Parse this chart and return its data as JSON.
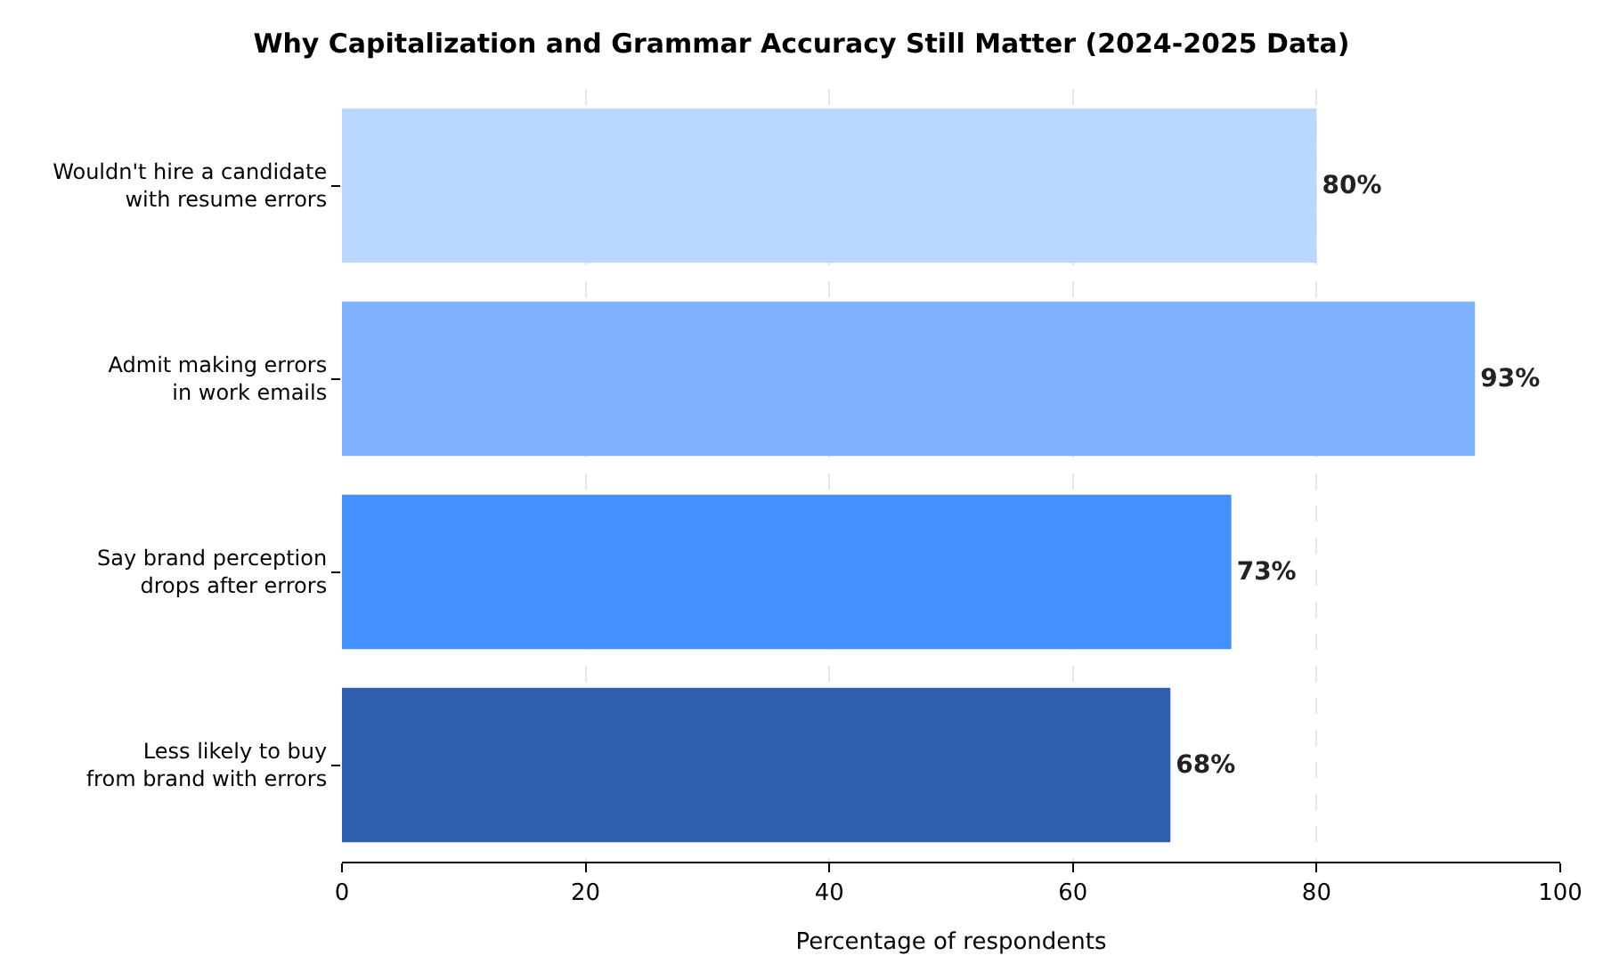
{
  "chart_data": {
    "type": "bar",
    "orientation": "horizontal",
    "title": "Why Capitalization and Grammar Accuracy Still Matter (2024-2025 Data)",
    "xlabel": "Percentage of respondents",
    "categories": [
      "Wouldn't hire a candidate\nwith resume errors",
      "Admit making errors\nin work emails",
      "Say brand perception\ndrops after errors",
      "Less likely to buy\nfrom brand with errors"
    ],
    "values": [
      80,
      93,
      73,
      68
    ],
    "colors": [
      "#b9d7ff",
      "#80b1ff",
      "#4291ff",
      "#2e5fad"
    ],
    "value_labels": [
      "80%",
      "93%",
      "73%",
      "68%"
    ],
    "xlim": [
      0,
      100
    ],
    "xticks": [
      0,
      20,
      40,
      60,
      80,
      100
    ],
    "grid": "x"
  }
}
